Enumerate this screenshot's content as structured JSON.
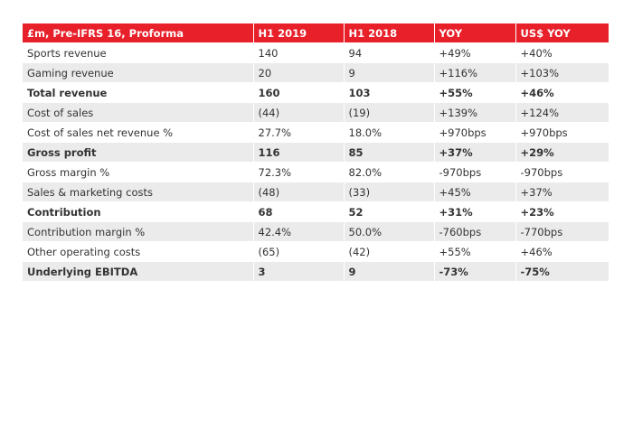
{
  "table": {
    "header": [
      "£m, Pre-IFRS 16, Proforma",
      "H1 2019",
      "H1 2018",
      "YOY",
      "US$ YOY"
    ],
    "rows": [
      [
        "Sports revenue",
        "140",
        "94",
        "+49%",
        "+40%"
      ],
      [
        "Gaming revenue",
        "20",
        "9",
        "+116%",
        "+103%"
      ],
      [
        "Total revenue",
        "160",
        "103",
        "+55%",
        "+46%"
      ],
      [
        "Cost of sales",
        "(44)",
        "(19)",
        "+139%",
        "+124%"
      ],
      [
        "Cost of sales net revenue %",
        "27.7%",
        "18.0%",
        "+970bps",
        "+970bps"
      ],
      [
        "Gross profit",
        "116",
        "85",
        "+37%",
        "+29%"
      ],
      [
        "Gross margin %",
        "72.3%",
        "82.0%",
        "-970bps",
        "-970bps"
      ],
      [
        "Sales & marketing costs",
        "(48)",
        "(33)",
        "+45%",
        "+37%"
      ],
      [
        "Contribution",
        "68",
        "52",
        "+31%",
        "+23%"
      ],
      [
        "Contribution margin %",
        "42.4%",
        "50.0%",
        "-760bps",
        "-770bps"
      ],
      [
        "Other operating costs",
        "(65)",
        "(42)",
        "+55%",
        "+46%"
      ],
      [
        "Underlying EBITDA",
        "3",
        "9",
        "-73%",
        "-75%"
      ]
    ]
  }
}
